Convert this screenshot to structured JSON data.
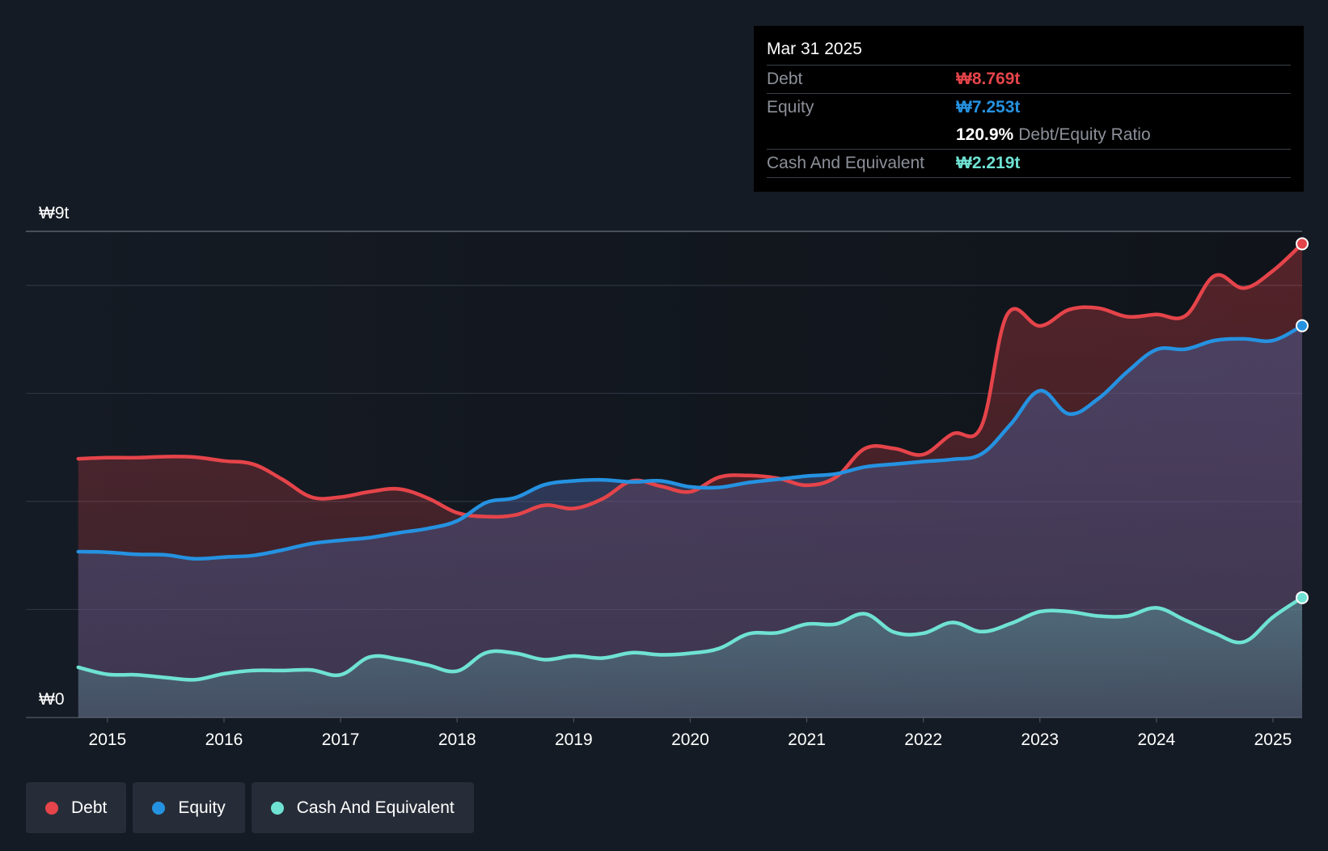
{
  "colors": {
    "debt": "#e5444a",
    "equity": "#2592e1",
    "cash": "#6fe2d3",
    "background": "#151b24",
    "grid": "#2e3540"
  },
  "tooltip": {
    "date": "Mar 31 2025",
    "debt_label": "Debt",
    "debt_value": "₩8.769t",
    "equity_label": "Equity",
    "equity_value": "₩7.253t",
    "ratio_value": "120.9%",
    "ratio_label": "Debt/Equity Ratio",
    "cash_label": "Cash And Equivalent",
    "cash_value": "₩2.219t"
  },
  "legend": {
    "debt": "Debt",
    "equity": "Equity",
    "cash": "Cash And Equivalent"
  },
  "chart_data": {
    "type": "area",
    "title": "",
    "xlabel": "",
    "ylabel": "",
    "y_unit": "trillion KRW",
    "ylim": [
      0,
      9
    ],
    "xlim": [
      2014.3,
      2025.25
    ],
    "y_tick_labels": [
      {
        "value": 9,
        "label": "₩9t"
      },
      {
        "value": 0,
        "label": "₩0"
      }
    ],
    "x_ticks": [
      {
        "value": 2015,
        "label": "2015"
      },
      {
        "value": 2016,
        "label": "2016"
      },
      {
        "value": 2017,
        "label": "2017"
      },
      {
        "value": 2018,
        "label": "2018"
      },
      {
        "value": 2019,
        "label": "2019"
      },
      {
        "value": 2020,
        "label": "2020"
      },
      {
        "value": 2021,
        "label": "2021"
      },
      {
        "value": 2022,
        "label": "2022"
      },
      {
        "value": 2023,
        "label": "2023"
      },
      {
        "value": 2024,
        "label": "2024"
      },
      {
        "value": 2025,
        "label": "2025"
      }
    ],
    "gridlines": [
      9,
      8,
      6,
      4,
      2,
      0
    ],
    "series": [
      {
        "name": "Debt",
        "color": "#e5444a",
        "points": [
          [
            2014.75,
            4.79
          ],
          [
            2015.0,
            4.81
          ],
          [
            2015.25,
            4.81
          ],
          [
            2015.5,
            4.83
          ],
          [
            2015.75,
            4.82
          ],
          [
            2016.0,
            4.75
          ],
          [
            2016.25,
            4.69
          ],
          [
            2016.5,
            4.41
          ],
          [
            2016.75,
            4.08
          ],
          [
            2017.0,
            4.08
          ],
          [
            2017.25,
            4.18
          ],
          [
            2017.5,
            4.23
          ],
          [
            2017.75,
            4.06
          ],
          [
            2018.0,
            3.79
          ],
          [
            2018.25,
            3.72
          ],
          [
            2018.5,
            3.75
          ],
          [
            2018.75,
            3.93
          ],
          [
            2019.0,
            3.87
          ],
          [
            2019.25,
            4.05
          ],
          [
            2019.5,
            4.38
          ],
          [
            2019.75,
            4.28
          ],
          [
            2020.0,
            4.18
          ],
          [
            2020.25,
            4.45
          ],
          [
            2020.5,
            4.48
          ],
          [
            2020.75,
            4.43
          ],
          [
            2021.0,
            4.3
          ],
          [
            2021.25,
            4.45
          ],
          [
            2021.5,
            4.98
          ],
          [
            2021.75,
            4.98
          ],
          [
            2022.0,
            4.87
          ],
          [
            2022.25,
            5.25
          ],
          [
            2022.5,
            5.4
          ],
          [
            2022.72,
            7.46
          ],
          [
            2023.0,
            7.25
          ],
          [
            2023.25,
            7.55
          ],
          [
            2023.5,
            7.58
          ],
          [
            2023.75,
            7.42
          ],
          [
            2024.0,
            7.46
          ],
          [
            2024.25,
            7.44
          ],
          [
            2024.5,
            8.18
          ],
          [
            2024.75,
            7.95
          ],
          [
            2025.0,
            8.27
          ],
          [
            2025.25,
            8.769
          ]
        ]
      },
      {
        "name": "Equity",
        "color": "#2592e1",
        "points": [
          [
            2014.75,
            3.07
          ],
          [
            2015.0,
            3.06
          ],
          [
            2015.25,
            3.02
          ],
          [
            2015.5,
            3.01
          ],
          [
            2015.75,
            2.94
          ],
          [
            2016.0,
            2.97
          ],
          [
            2016.25,
            3.0
          ],
          [
            2016.5,
            3.1
          ],
          [
            2016.75,
            3.22
          ],
          [
            2017.0,
            3.28
          ],
          [
            2017.25,
            3.33
          ],
          [
            2017.5,
            3.42
          ],
          [
            2017.75,
            3.5
          ],
          [
            2018.0,
            3.64
          ],
          [
            2018.25,
            3.98
          ],
          [
            2018.5,
            4.07
          ],
          [
            2018.75,
            4.31
          ],
          [
            2019.0,
            4.38
          ],
          [
            2019.25,
            4.4
          ],
          [
            2019.5,
            4.36
          ],
          [
            2019.75,
            4.38
          ],
          [
            2020.0,
            4.27
          ],
          [
            2020.25,
            4.26
          ],
          [
            2020.5,
            4.35
          ],
          [
            2020.75,
            4.41
          ],
          [
            2021.0,
            4.47
          ],
          [
            2021.25,
            4.51
          ],
          [
            2021.5,
            4.64
          ],
          [
            2021.75,
            4.69
          ],
          [
            2022.0,
            4.74
          ],
          [
            2022.25,
            4.78
          ],
          [
            2022.5,
            4.88
          ],
          [
            2022.75,
            5.43
          ],
          [
            2023.0,
            6.05
          ],
          [
            2023.25,
            5.62
          ],
          [
            2023.5,
            5.9
          ],
          [
            2023.75,
            6.4
          ],
          [
            2024.0,
            6.81
          ],
          [
            2024.25,
            6.82
          ],
          [
            2024.5,
            6.98
          ],
          [
            2024.75,
            7.01
          ],
          [
            2025.0,
            6.98
          ],
          [
            2025.25,
            7.253
          ]
        ]
      },
      {
        "name": "Cash And Equivalent",
        "color": "#6fe2d3",
        "points": [
          [
            2014.75,
            0.93
          ],
          [
            2015.0,
            0.8
          ],
          [
            2015.25,
            0.79
          ],
          [
            2015.5,
            0.74
          ],
          [
            2015.75,
            0.7
          ],
          [
            2016.0,
            0.81
          ],
          [
            2016.25,
            0.87
          ],
          [
            2016.5,
            0.87
          ],
          [
            2016.75,
            0.88
          ],
          [
            2017.0,
            0.79
          ],
          [
            2017.25,
            1.12
          ],
          [
            2017.5,
            1.08
          ],
          [
            2017.75,
            0.97
          ],
          [
            2018.0,
            0.86
          ],
          [
            2018.25,
            1.2
          ],
          [
            2018.5,
            1.19
          ],
          [
            2018.75,
            1.07
          ],
          [
            2019.0,
            1.14
          ],
          [
            2019.25,
            1.1
          ],
          [
            2019.5,
            1.2
          ],
          [
            2019.75,
            1.16
          ],
          [
            2020.0,
            1.19
          ],
          [
            2020.25,
            1.28
          ],
          [
            2020.5,
            1.55
          ],
          [
            2020.75,
            1.57
          ],
          [
            2021.0,
            1.73
          ],
          [
            2021.25,
            1.73
          ],
          [
            2021.5,
            1.92
          ],
          [
            2021.75,
            1.58
          ],
          [
            2022.0,
            1.56
          ],
          [
            2022.25,
            1.76
          ],
          [
            2022.5,
            1.59
          ],
          [
            2022.75,
            1.74
          ],
          [
            2023.0,
            1.96
          ],
          [
            2023.25,
            1.96
          ],
          [
            2023.5,
            1.88
          ],
          [
            2023.75,
            1.88
          ],
          [
            2024.0,
            2.03
          ],
          [
            2024.25,
            1.8
          ],
          [
            2024.5,
            1.56
          ],
          [
            2024.75,
            1.4
          ],
          [
            2025.0,
            1.86
          ],
          [
            2025.25,
            2.219
          ]
        ]
      }
    ],
    "legend_position": "bottom-left"
  }
}
